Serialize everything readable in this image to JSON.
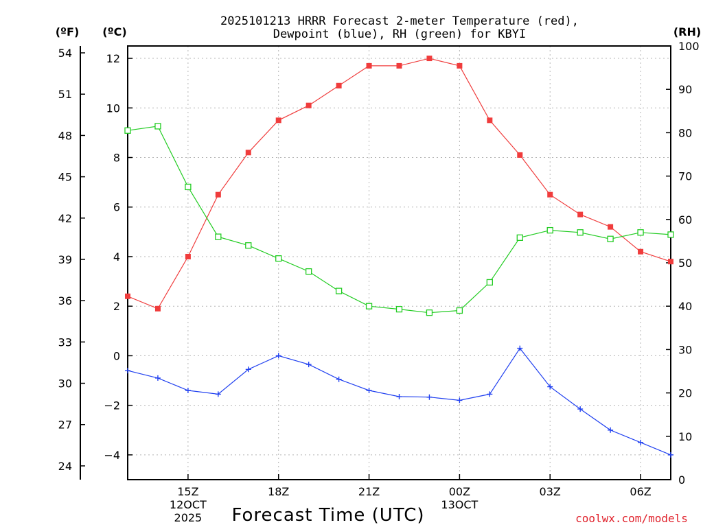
{
  "chart_data": {
    "type": "line",
    "title_line1": "2025101213 HRRR Forecast 2-meter Temperature (red),",
    "title_line2": "Dewpoint (blue), RH (green) for KBYI",
    "unit_f": "(ºF)",
    "unit_c": "(ºC)",
    "unit_rh": "(RH)",
    "xlabel": "Forecast Time (UTC)",
    "credit": "coolwx.com/models",
    "hours": [
      13,
      14,
      15,
      16,
      17,
      18,
      19,
      20,
      21,
      22,
      23,
      24,
      25,
      26,
      27,
      28,
      29,
      30,
      31
    ],
    "x_range": [
      13,
      31
    ],
    "ylim_c": [
      -5,
      12.5
    ],
    "ylim_rh": [
      0,
      100
    ],
    "c_ticks": [
      "-4",
      "-2",
      "0",
      "2",
      "4",
      "6",
      "8",
      "10",
      "12"
    ],
    "f_ticks": [
      "24",
      "27",
      "30",
      "33",
      "36",
      "39",
      "42",
      "45",
      "48",
      "51",
      "54"
    ],
    "rh_ticks": [
      "0",
      "10",
      "20",
      "30",
      "40",
      "50",
      "60",
      "70",
      "80",
      "90",
      "100"
    ],
    "x_ticks": [
      {
        "hour": 15,
        "label": "15Z",
        "sub1": "12OCT",
        "sub2": "2025"
      },
      {
        "hour": 18,
        "label": "18Z",
        "sub1": "",
        "sub2": ""
      },
      {
        "hour": 21,
        "label": "21Z",
        "sub1": "",
        "sub2": ""
      },
      {
        "hour": 24,
        "label": "00Z",
        "sub1": "13OCT",
        "sub2": ""
      },
      {
        "hour": 27,
        "label": "03Z",
        "sub1": "",
        "sub2": ""
      },
      {
        "hour": 30,
        "label": "06Z",
        "sub1": "",
        "sub2": ""
      }
    ],
    "series": [
      {
        "name": "Temperature",
        "axis": "c",
        "color": "#f03c3c",
        "marker": "filled-square",
        "values": [
          2.4,
          1.9,
          4.0,
          6.5,
          8.2,
          9.5,
          10.1,
          10.9,
          11.7,
          11.7,
          12.0,
          11.7,
          9.5,
          8.1,
          6.5,
          5.7,
          5.2,
          4.2,
          3.8
        ]
      },
      {
        "name": "Dewpoint",
        "axis": "c",
        "color": "#2040f0",
        "marker": "plus",
        "values": [
          -0.6,
          -0.9,
          -1.4,
          -1.55,
          -0.55,
          0.0,
          -0.35,
          -0.95,
          -1.4,
          -1.65,
          -1.67,
          -1.8,
          -1.55,
          0.3,
          -1.25,
          -2.15,
          -3.0,
          -3.5,
          -4.0
        ]
      },
      {
        "name": "RH",
        "axis": "rh",
        "color": "#22cc22",
        "marker": "open-square",
        "values": [
          80.5,
          81.5,
          67.5,
          56.0,
          54.0,
          51.0,
          48.0,
          43.5,
          40.0,
          39.3,
          38.5,
          39.0,
          45.5,
          55.8,
          57.5,
          57.0,
          55.5,
          57.0,
          56.5
        ]
      }
    ]
  }
}
